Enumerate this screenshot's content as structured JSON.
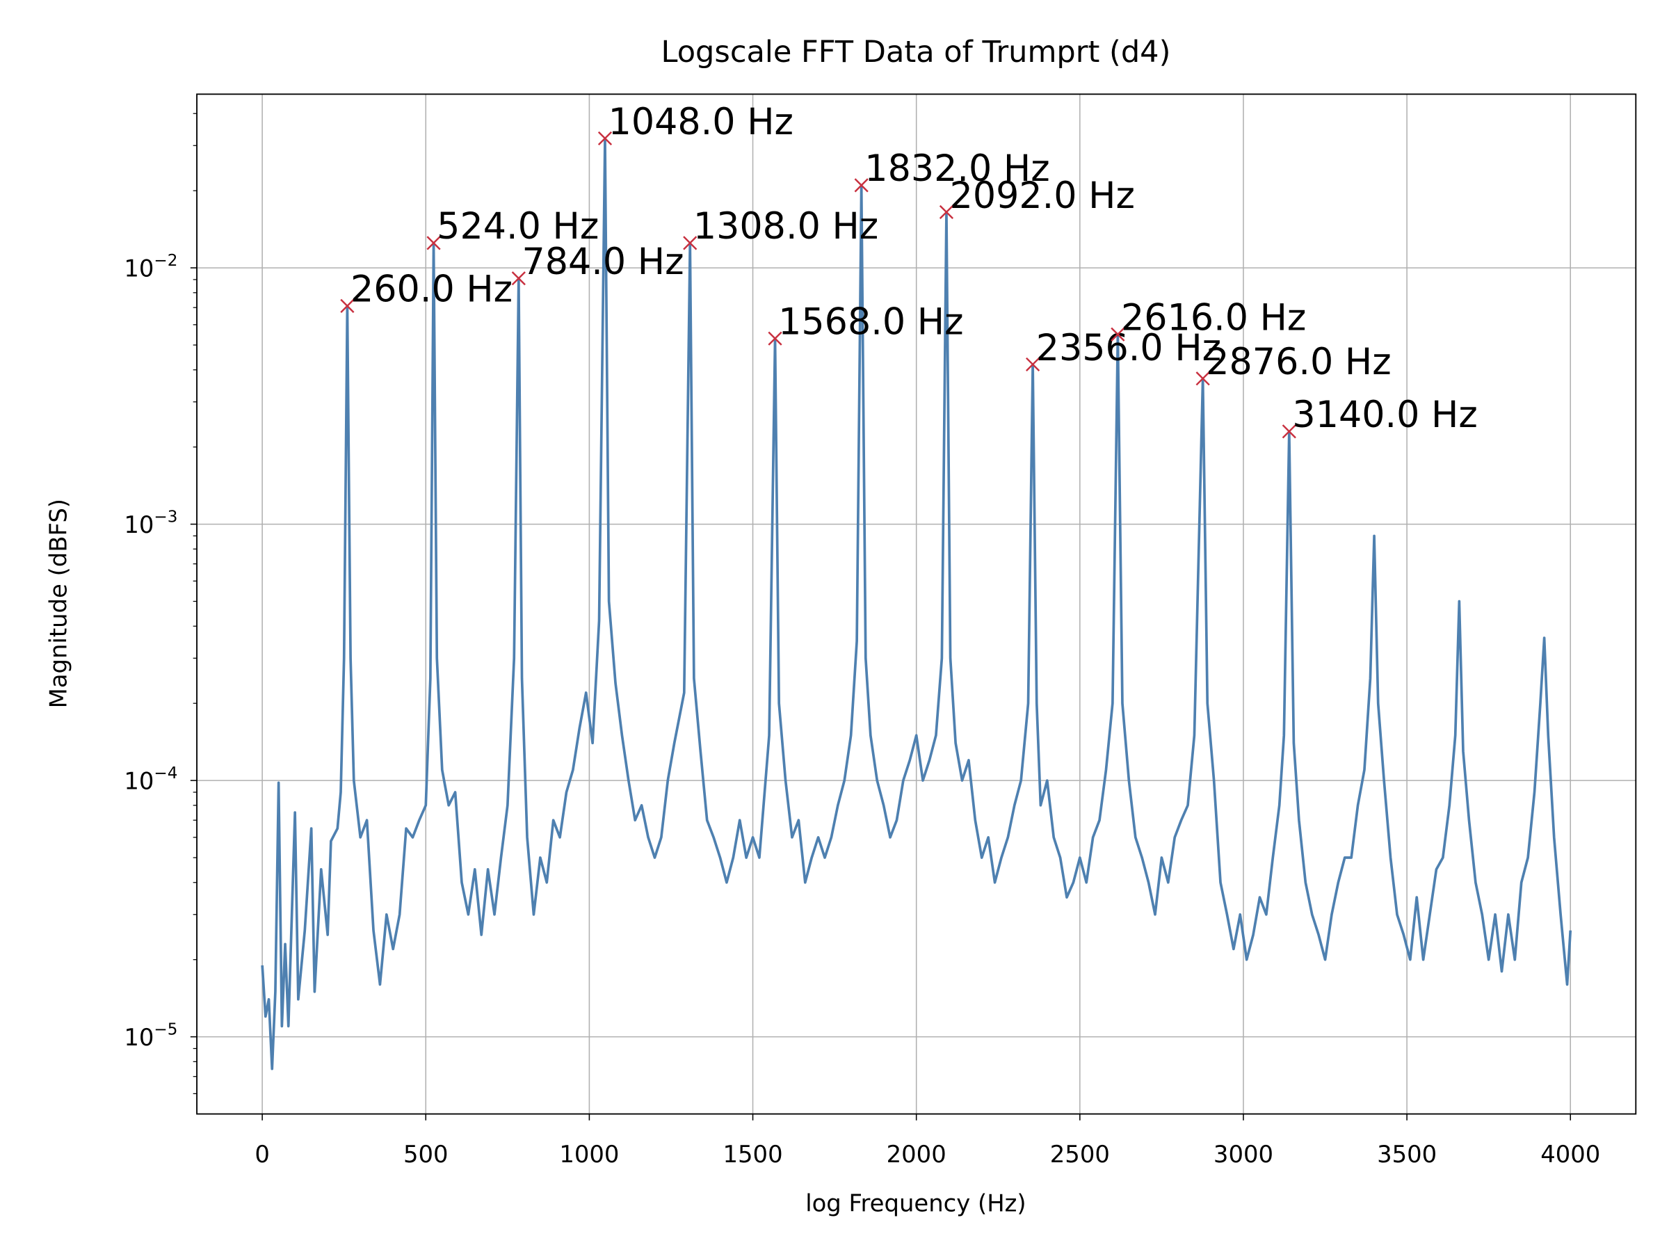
{
  "chart_data": {
    "type": "line",
    "title": "Logscale FFT Data of Trumprt (d4)",
    "x_label": "log Frequency (Hz)",
    "y_label": "Magnitude (dBFS)",
    "yscale": "log",
    "grid": true,
    "xlim": [
      -200,
      4200
    ],
    "ylim": [
      5e-06,
      0.0476
    ],
    "xticks": [
      0,
      500,
      1000,
      1500,
      2000,
      2500,
      3000,
      3500,
      4000
    ],
    "yticks": [
      {
        "value": 1e-05,
        "label": "10",
        "exponent": "−5"
      },
      {
        "value": 0.0001,
        "label": "10",
        "exponent": "−4"
      },
      {
        "value": 0.001,
        "label": "10",
        "exponent": "−3"
      },
      {
        "value": 0.01,
        "label": "10",
        "exponent": "−2"
      }
    ],
    "x": [
      0,
      10,
      20,
      30,
      40,
      50,
      60,
      70,
      80,
      100,
      110,
      130,
      150,
      160,
      180,
      200,
      210,
      230,
      240,
      250,
      260,
      270,
      280,
      300,
      320,
      340,
      360,
      380,
      400,
      420,
      440,
      460,
      480,
      500,
      514,
      524,
      534,
      550,
      570,
      590,
      610,
      630,
      650,
      670,
      690,
      710,
      730,
      750,
      770,
      784,
      794,
      810,
      830,
      850,
      870,
      890,
      910,
      930,
      950,
      970,
      990,
      1010,
      1030,
      1048,
      1060,
      1080,
      1100,
      1120,
      1140,
      1160,
      1180,
      1200,
      1220,
      1240,
      1260,
      1290,
      1308,
      1320,
      1340,
      1360,
      1380,
      1400,
      1420,
      1440,
      1460,
      1480,
      1500,
      1520,
      1550,
      1568,
      1580,
      1600,
      1620,
      1640,
      1660,
      1680,
      1700,
      1720,
      1740,
      1760,
      1780,
      1800,
      1818,
      1832,
      1845,
      1860,
      1880,
      1900,
      1920,
      1940,
      1960,
      1980,
      2000,
      2020,
      2040,
      2060,
      2078,
      2092,
      2104,
      2120,
      2140,
      2160,
      2180,
      2200,
      2220,
      2240,
      2260,
      2280,
      2300,
      2320,
      2342,
      2356,
      2368,
      2380,
      2400,
      2420,
      2440,
      2460,
      2480,
      2500,
      2520,
      2540,
      2560,
      2580,
      2600,
      2616,
      2630,
      2650,
      2670,
      2690,
      2710,
      2730,
      2750,
      2770,
      2790,
      2810,
      2830,
      2850,
      2876,
      2890,
      2910,
      2930,
      2950,
      2970,
      2990,
      3010,
      3030,
      3050,
      3070,
      3090,
      3110,
      3124,
      3140,
      3154,
      3170,
      3190,
      3210,
      3230,
      3250,
      3270,
      3290,
      3310,
      3330,
      3350,
      3370,
      3388,
      3400,
      3412,
      3430,
      3450,
      3470,
      3490,
      3510,
      3530,
      3550,
      3570,
      3590,
      3610,
      3630,
      3648,
      3660,
      3672,
      3690,
      3710,
      3730,
      3750,
      3770,
      3790,
      3810,
      3830,
      3850,
      3870,
      3890,
      3908,
      3920,
      3932,
      3950,
      3970,
      3990,
      4000
    ],
    "series": [
      {
        "color": "#4e80b0",
        "values": [
          1.9e-05,
          1.2e-05,
          1.4e-05,
          7.5e-06,
          1.5e-05,
          9.8e-05,
          1.1e-05,
          2.3e-05,
          1.1e-05,
          7.5e-05,
          1.4e-05,
          2.6e-05,
          6.5e-05,
          1.5e-05,
          4.5e-05,
          2.5e-05,
          5.8e-05,
          6.5e-05,
          9e-05,
          0.0003,
          0.0071,
          0.0003,
          0.0001,
          6e-05,
          7e-05,
          2.6e-05,
          1.6e-05,
          3e-05,
          2.2e-05,
          3e-05,
          6.5e-05,
          6e-05,
          7e-05,
          8e-05,
          0.00025,
          0.0125,
          0.0003,
          0.00011,
          8e-05,
          9e-05,
          4e-05,
          3e-05,
          4.5e-05,
          2.5e-05,
          4.5e-05,
          3e-05,
          5e-05,
          8e-05,
          0.0003,
          0.0091,
          0.00025,
          6e-05,
          3e-05,
          5e-05,
          4e-05,
          7e-05,
          6e-05,
          9e-05,
          0.00011,
          0.00016,
          0.00022,
          0.00014,
          0.00042,
          0.032,
          0.0005,
          0.00024,
          0.00015,
          0.0001,
          7e-05,
          8e-05,
          6e-05,
          5e-05,
          6e-05,
          0.0001,
          0.00014,
          0.00022,
          0.0125,
          0.00025,
          0.00013,
          7e-05,
          6e-05,
          5e-05,
          4e-05,
          5e-05,
          7e-05,
          5e-05,
          6e-05,
          5e-05,
          0.00015,
          0.0053,
          0.0002,
          0.0001,
          6e-05,
          7e-05,
          4e-05,
          5e-05,
          6e-05,
          5e-05,
          6e-05,
          8e-05,
          0.0001,
          0.00015,
          0.00035,
          0.021,
          0.0003,
          0.00015,
          0.0001,
          8e-05,
          6e-05,
          7e-05,
          0.0001,
          0.00012,
          0.00015,
          0.0001,
          0.00012,
          0.00015,
          0.0003,
          0.0165,
          0.0003,
          0.00014,
          0.0001,
          0.00012,
          7e-05,
          5e-05,
          6e-05,
          4e-05,
          5e-05,
          6e-05,
          8e-05,
          0.0001,
          0.0002,
          0.0042,
          0.0002,
          8e-05,
          0.0001,
          6e-05,
          5e-05,
          3.5e-05,
          4e-05,
          5e-05,
          4e-05,
          6e-05,
          7e-05,
          0.00011,
          0.0002,
          0.0055,
          0.0002,
          0.0001,
          6e-05,
          5e-05,
          4e-05,
          3e-05,
          5e-05,
          4e-05,
          6e-05,
          7e-05,
          8e-05,
          0.00015,
          0.0037,
          0.0002,
          0.0001,
          4e-05,
          3e-05,
          2.2e-05,
          3e-05,
          2e-05,
          2.5e-05,
          3.5e-05,
          3e-05,
          5e-05,
          8e-05,
          0.00015,
          0.0023,
          0.00014,
          7e-05,
          4e-05,
          3e-05,
          2.5e-05,
          2e-05,
          3e-05,
          4e-05,
          5e-05,
          5e-05,
          8e-05,
          0.00011,
          0.00025,
          0.0009,
          0.0002,
          0.0001,
          5e-05,
          3e-05,
          2.5e-05,
          2e-05,
          3.5e-05,
          2e-05,
          3e-05,
          4.5e-05,
          5e-05,
          8e-05,
          0.00015,
          0.0005,
          0.00013,
          7e-05,
          4e-05,
          3e-05,
          2e-05,
          3e-05,
          1.8e-05,
          3e-05,
          2e-05,
          4e-05,
          5e-05,
          9e-05,
          0.0002,
          0.00036,
          0.00015,
          6e-05,
          3e-05,
          1.6e-05,
          2.6e-05
        ]
      }
    ],
    "markers": {
      "color": "#c8303f",
      "label_color": "#ff5a0a",
      "x": [
        260,
        524,
        784,
        1048,
        1308,
        1568,
        1832,
        2092,
        2356,
        2616,
        2876,
        3140
      ],
      "values": [
        0.0071,
        0.0125,
        0.0091,
        0.032,
        0.0125,
        0.0053,
        0.021,
        0.0165,
        0.0042,
        0.0055,
        0.0037,
        0.0023
      ],
      "labels": [
        "260.0 Hz",
        "524.0 Hz",
        "784.0 Hz",
        "1048.0 Hz",
        "1308.0 Hz",
        "1568.0 Hz",
        "1832.0 Hz",
        "2092.0 Hz",
        "2356.0 Hz",
        "2616.0 Hz",
        "2876.0 Hz",
        "3140.0 Hz"
      ]
    }
  }
}
